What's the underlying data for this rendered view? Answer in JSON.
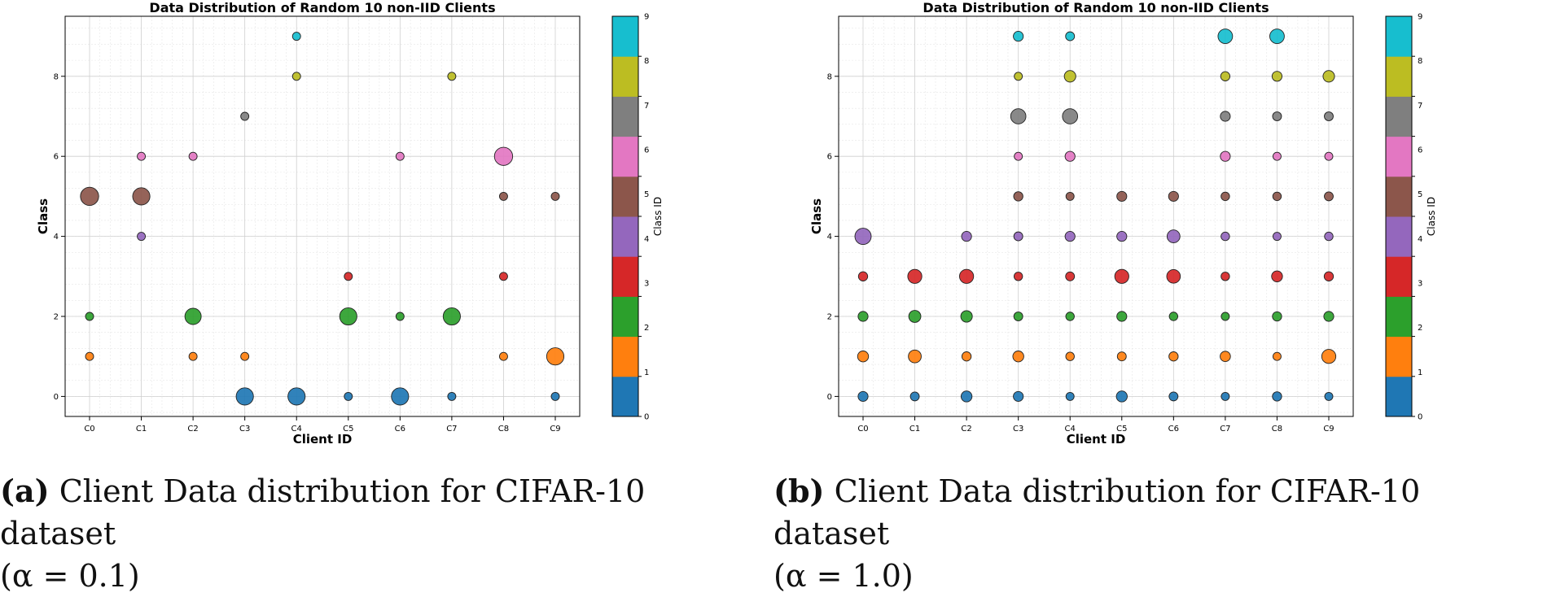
{
  "colors": [
    "#1f77b4",
    "#ff7f0e",
    "#2ca02c",
    "#d62728",
    "#9467bd",
    "#8c564b",
    "#e377c2",
    "#7f7f7f",
    "#bcbd22",
    "#17becf"
  ],
  "panels": [
    {
      "caption_tag": "(a)",
      "caption_text": "Client Data distribution for CIFAR-10 dataset",
      "caption_line2": "(α = 0.1)"
    },
    {
      "caption_tag": "(b)",
      "caption_text": "Client Data distribution for CIFAR-10 dataset",
      "caption_line2": "(α = 1.0)"
    }
  ],
  "chart_data": [
    {
      "type": "scatter",
      "title": "Data Distribution of Random 10 non-IID Clients",
      "xlabel": "Client ID",
      "ylabel": "Class",
      "categories": [
        "C0",
        "C1",
        "C2",
        "C3",
        "C4",
        "C5",
        "C6",
        "C7",
        "C8",
        "C9"
      ],
      "yticks": [
        0,
        2,
        4,
        6,
        8
      ],
      "ylim": [
        -0.5,
        9.5
      ],
      "grid": true,
      "marker_size_encodes": "relative sample count",
      "colorbar": {
        "label": "Class ID",
        "ticks": [
          0,
          1,
          2,
          3,
          4,
          5,
          6,
          7,
          8,
          9
        ]
      },
      "points": [
        {
          "client": 0,
          "class": 1,
          "size": 1
        },
        {
          "client": 0,
          "class": 2,
          "size": 1
        },
        {
          "client": 0,
          "class": 5,
          "size": 5
        },
        {
          "client": 1,
          "class": 4,
          "size": 1
        },
        {
          "client": 1,
          "class": 5,
          "size": 4.5
        },
        {
          "client": 1,
          "class": 6,
          "size": 1
        },
        {
          "client": 2,
          "class": 1,
          "size": 1
        },
        {
          "client": 2,
          "class": 2,
          "size": 4
        },
        {
          "client": 2,
          "class": 6,
          "size": 1
        },
        {
          "client": 3,
          "class": 0,
          "size": 4.5
        },
        {
          "client": 3,
          "class": 1,
          "size": 1
        },
        {
          "client": 3,
          "class": 7,
          "size": 1
        },
        {
          "client": 4,
          "class": 0,
          "size": 4.5
        },
        {
          "client": 4,
          "class": 8,
          "size": 1
        },
        {
          "client": 4,
          "class": 9,
          "size": 1
        },
        {
          "client": 5,
          "class": 0,
          "size": 1
        },
        {
          "client": 5,
          "class": 2,
          "size": 4.5
        },
        {
          "client": 5,
          "class": 3,
          "size": 1
        },
        {
          "client": 6,
          "class": 0,
          "size": 4.5
        },
        {
          "client": 6,
          "class": 2,
          "size": 1
        },
        {
          "client": 6,
          "class": 6,
          "size": 1
        },
        {
          "client": 7,
          "class": 0,
          "size": 1
        },
        {
          "client": 7,
          "class": 2,
          "size": 4.5
        },
        {
          "client": 7,
          "class": 8,
          "size": 1
        },
        {
          "client": 8,
          "class": 1,
          "size": 1
        },
        {
          "client": 8,
          "class": 3,
          "size": 1
        },
        {
          "client": 8,
          "class": 5,
          "size": 1
        },
        {
          "client": 8,
          "class": 6,
          "size": 5
        },
        {
          "client": 9,
          "class": 0,
          "size": 1
        },
        {
          "client": 9,
          "class": 1,
          "size": 4.5
        },
        {
          "client": 9,
          "class": 5,
          "size": 1
        }
      ]
    },
    {
      "type": "scatter",
      "title": "Data Distribution of Random 10 non-IID Clients",
      "xlabel": "Client ID",
      "ylabel": "Class",
      "categories": [
        "C0",
        "C1",
        "C2",
        "C3",
        "C4",
        "C5",
        "C6",
        "C7",
        "C8",
        "C9"
      ],
      "yticks": [
        0,
        2,
        4,
        6,
        8
      ],
      "ylim": [
        -0.5,
        9.5
      ],
      "grid": true,
      "marker_size_encodes": "relative sample count",
      "colorbar": {
        "label": "Class ID",
        "ticks": [
          0,
          1,
          2,
          3,
          4,
          5,
          6,
          7,
          8,
          9
        ]
      },
      "points": [
        {
          "client": 0,
          "class": 0,
          "size": 1.5
        },
        {
          "client": 0,
          "class": 1,
          "size": 1.8
        },
        {
          "client": 0,
          "class": 2,
          "size": 1.5
        },
        {
          "client": 0,
          "class": 3,
          "size": 1.3
        },
        {
          "client": 0,
          "class": 4,
          "size": 4
        },
        {
          "client": 1,
          "class": 0,
          "size": 1.2
        },
        {
          "client": 1,
          "class": 1,
          "size": 2.5
        },
        {
          "client": 1,
          "class": 2,
          "size": 2.2
        },
        {
          "client": 1,
          "class": 3,
          "size": 3
        },
        {
          "client": 2,
          "class": 0,
          "size": 1.8
        },
        {
          "client": 2,
          "class": 1,
          "size": 1.3
        },
        {
          "client": 2,
          "class": 2,
          "size": 2
        },
        {
          "client": 2,
          "class": 3,
          "size": 3
        },
        {
          "client": 2,
          "class": 4,
          "size": 1.5
        },
        {
          "client": 3,
          "class": 0,
          "size": 1.5
        },
        {
          "client": 3,
          "class": 1,
          "size": 1.8
        },
        {
          "client": 3,
          "class": 2,
          "size": 1.2
        },
        {
          "client": 3,
          "class": 3,
          "size": 1.1
        },
        {
          "client": 3,
          "class": 4,
          "size": 1.2
        },
        {
          "client": 3,
          "class": 5,
          "size": 1.3
        },
        {
          "client": 3,
          "class": 6,
          "size": 1
        },
        {
          "client": 3,
          "class": 7,
          "size": 3.5
        },
        {
          "client": 3,
          "class": 8,
          "size": 1
        },
        {
          "client": 3,
          "class": 9,
          "size": 1.5
        },
        {
          "client": 4,
          "class": 0,
          "size": 1
        },
        {
          "client": 4,
          "class": 1,
          "size": 1.1
        },
        {
          "client": 4,
          "class": 2,
          "size": 1.1
        },
        {
          "client": 4,
          "class": 3,
          "size": 1.2
        },
        {
          "client": 4,
          "class": 4,
          "size": 1.5
        },
        {
          "client": 4,
          "class": 5,
          "size": 1
        },
        {
          "client": 4,
          "class": 6,
          "size": 1.5
        },
        {
          "client": 4,
          "class": 7,
          "size": 3.5
        },
        {
          "client": 4,
          "class": 8,
          "size": 2
        },
        {
          "client": 4,
          "class": 9,
          "size": 1.2
        },
        {
          "client": 5,
          "class": 0,
          "size": 1.8
        },
        {
          "client": 5,
          "class": 1,
          "size": 1.2
        },
        {
          "client": 5,
          "class": 2,
          "size": 1.5
        },
        {
          "client": 5,
          "class": 3,
          "size": 3
        },
        {
          "client": 5,
          "class": 4,
          "size": 1.5
        },
        {
          "client": 5,
          "class": 5,
          "size": 1.5
        },
        {
          "client": 6,
          "class": 0,
          "size": 1.2
        },
        {
          "client": 6,
          "class": 1,
          "size": 1.3
        },
        {
          "client": 6,
          "class": 2,
          "size": 1.1
        },
        {
          "client": 6,
          "class": 3,
          "size": 2.8
        },
        {
          "client": 6,
          "class": 4,
          "size": 2.5
        },
        {
          "client": 6,
          "class": 5,
          "size": 1.5
        },
        {
          "client": 7,
          "class": 0,
          "size": 1
        },
        {
          "client": 7,
          "class": 1,
          "size": 1.6
        },
        {
          "client": 7,
          "class": 2,
          "size": 1
        },
        {
          "client": 7,
          "class": 3,
          "size": 1.1
        },
        {
          "client": 7,
          "class": 4,
          "size": 1.1
        },
        {
          "client": 7,
          "class": 5,
          "size": 1.1
        },
        {
          "client": 7,
          "class": 6,
          "size": 1.5
        },
        {
          "client": 7,
          "class": 7,
          "size": 1.5
        },
        {
          "client": 7,
          "class": 8,
          "size": 1.3
        },
        {
          "client": 7,
          "class": 9,
          "size": 3.2
        },
        {
          "client": 8,
          "class": 0,
          "size": 1.3
        },
        {
          "client": 8,
          "class": 1,
          "size": 1
        },
        {
          "client": 8,
          "class": 2,
          "size": 1.3
        },
        {
          "client": 8,
          "class": 3,
          "size": 1.8
        },
        {
          "client": 8,
          "class": 4,
          "size": 1
        },
        {
          "client": 8,
          "class": 5,
          "size": 1.1
        },
        {
          "client": 8,
          "class": 6,
          "size": 1
        },
        {
          "client": 8,
          "class": 7,
          "size": 1.2
        },
        {
          "client": 8,
          "class": 8,
          "size": 1.5
        },
        {
          "client": 8,
          "class": 9,
          "size": 3.2
        },
        {
          "client": 9,
          "class": 0,
          "size": 1
        },
        {
          "client": 9,
          "class": 1,
          "size": 3
        },
        {
          "client": 9,
          "class": 2,
          "size": 1.5
        },
        {
          "client": 9,
          "class": 3,
          "size": 1.3
        },
        {
          "client": 9,
          "class": 4,
          "size": 1.1
        },
        {
          "client": 9,
          "class": 5,
          "size": 1.2
        },
        {
          "client": 9,
          "class": 6,
          "size": 1
        },
        {
          "client": 9,
          "class": 7,
          "size": 1.2
        },
        {
          "client": 9,
          "class": 8,
          "size": 2
        }
      ]
    }
  ]
}
